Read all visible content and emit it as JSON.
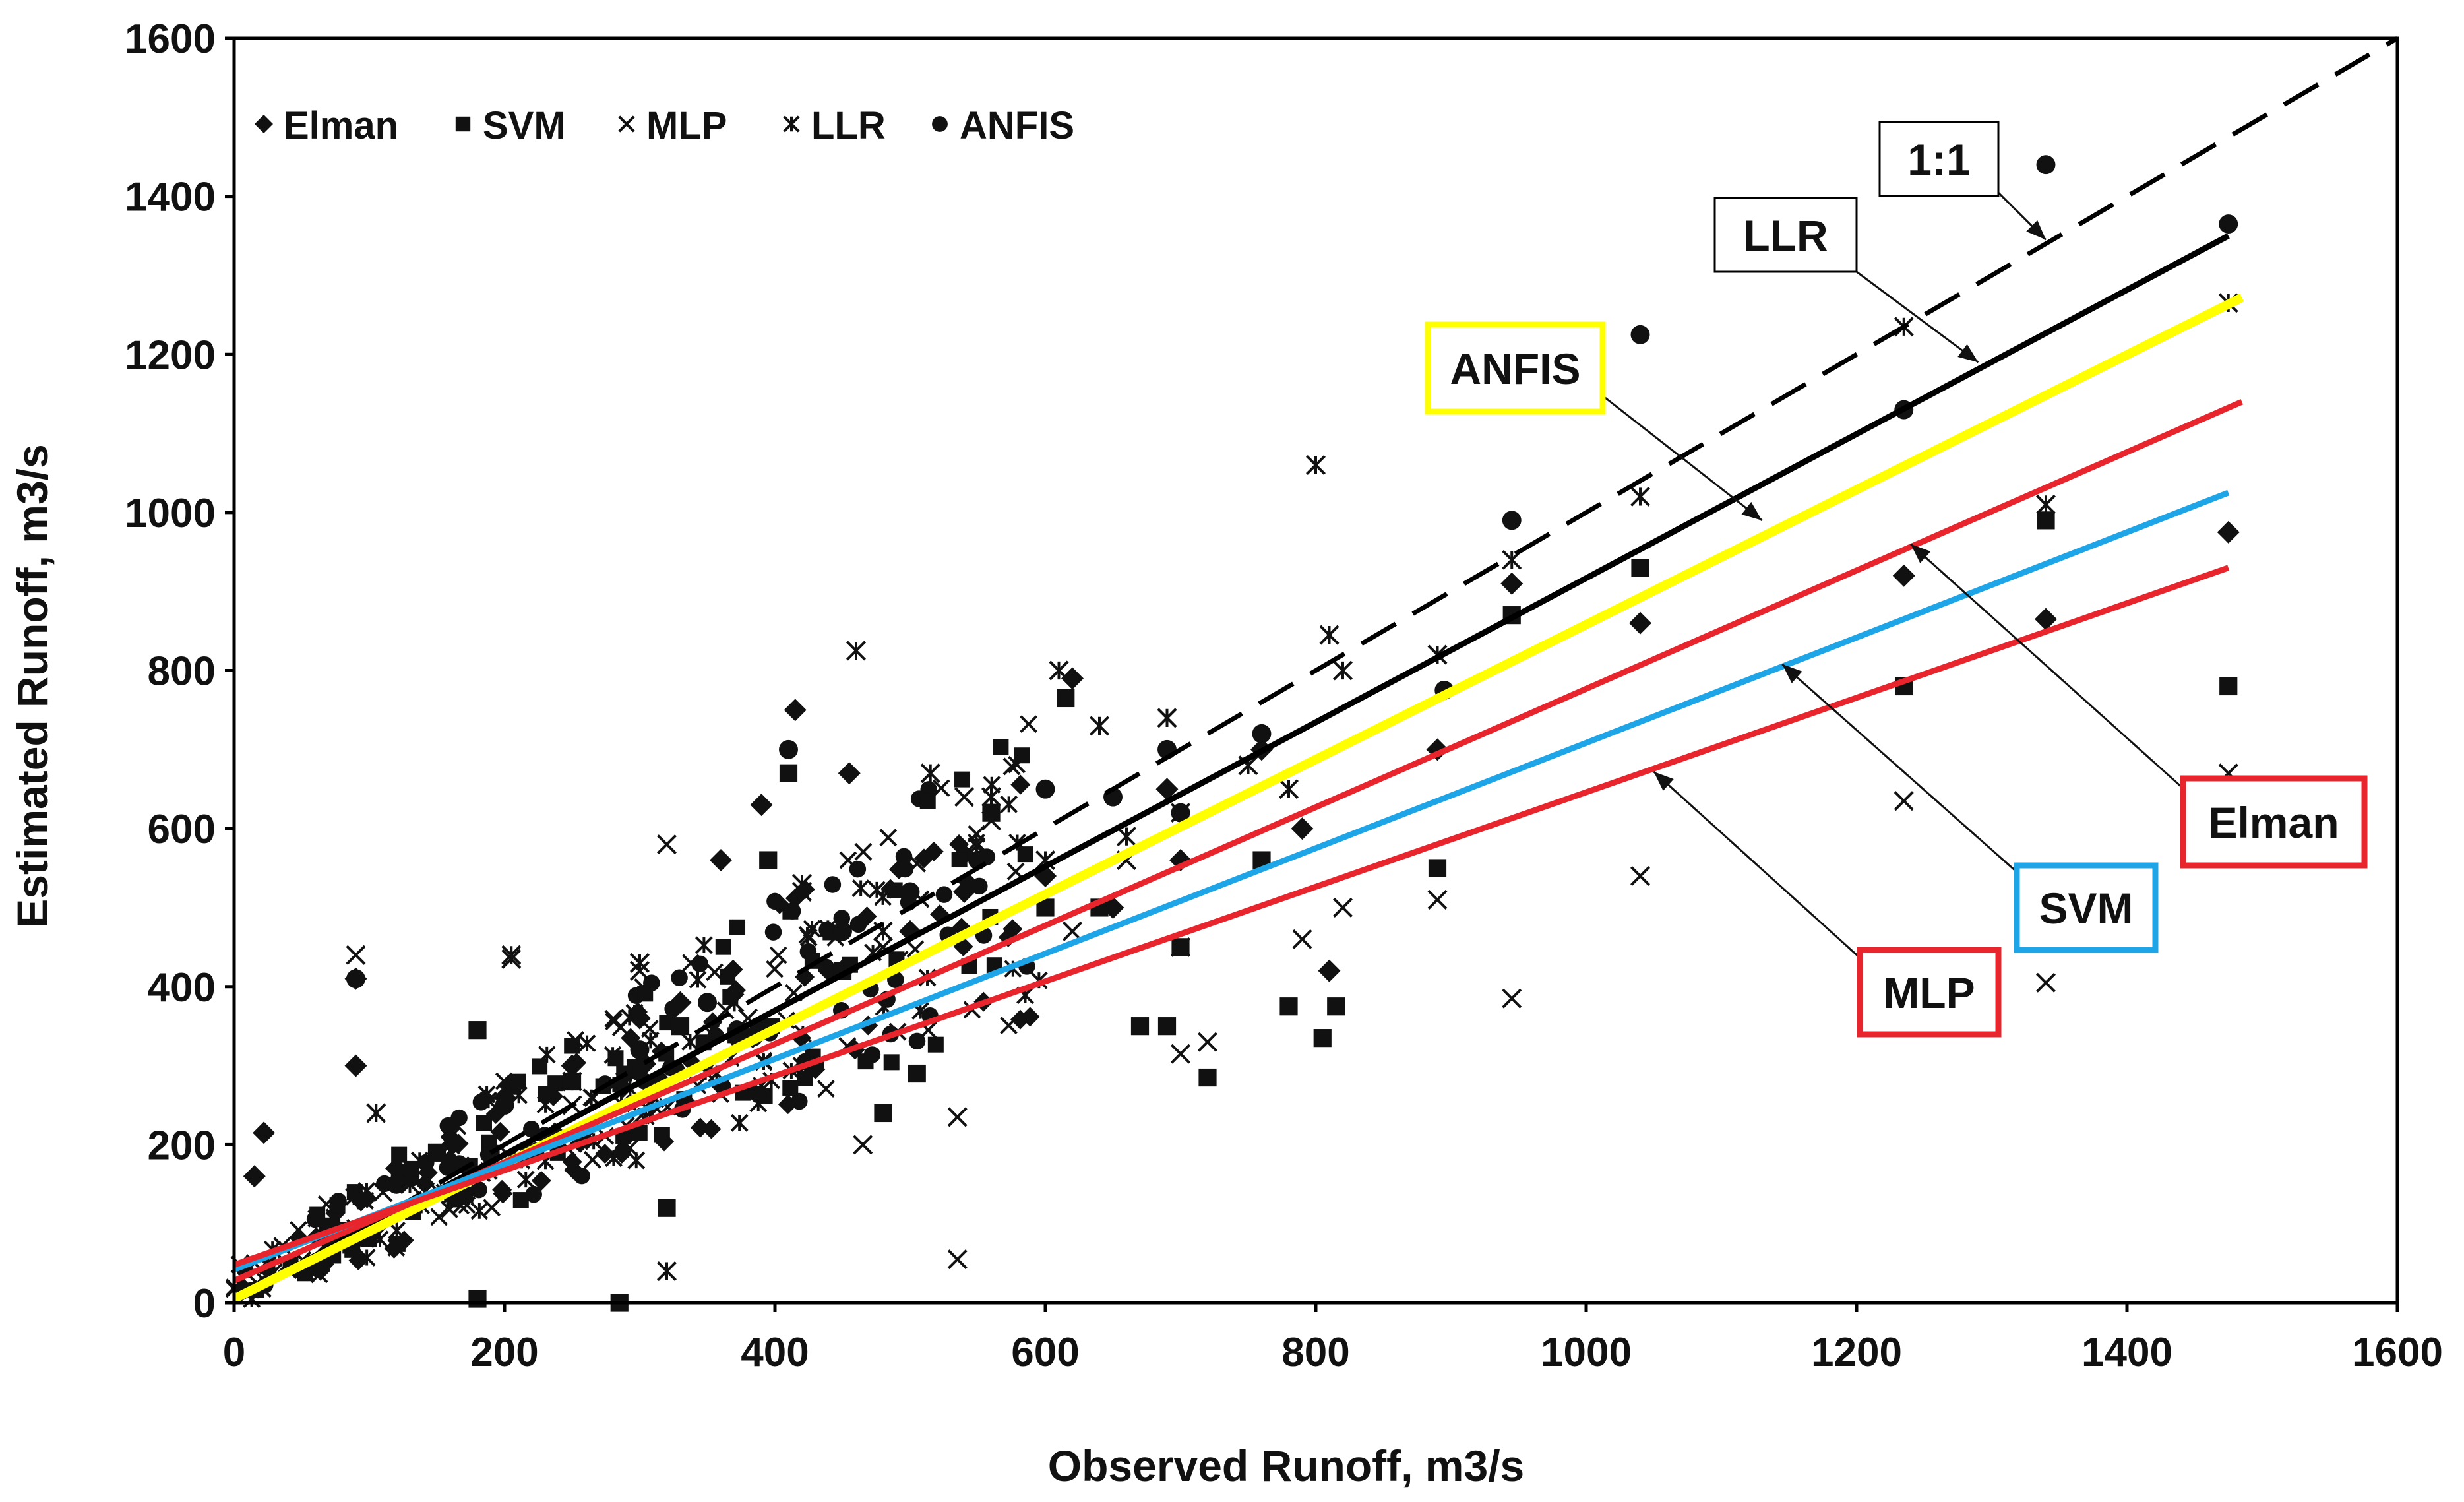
{
  "chart_data": {
    "type": "scatter",
    "title": "",
    "xlabel": "Observed Runoff, m3/s",
    "ylabel": "Estimated Runoff, m3/s",
    "xlim": [
      0,
      1600
    ],
    "ylim": [
      0,
      1600
    ],
    "x_ticks": [
      0,
      200,
      400,
      600,
      800,
      1000,
      1200,
      1400,
      1600
    ],
    "y_ticks": [
      0,
      200,
      400,
      600,
      800,
      1000,
      1200,
      1400,
      1600
    ],
    "x_tick_labels": [
      "0",
      "200",
      "400",
      "600",
      "800",
      "1000",
      "1200",
      "1400",
      "1600"
    ],
    "y_tick_labels": [
      "0",
      "200",
      "400",
      "600",
      "800",
      "1000",
      "1200",
      "1400",
      "1600"
    ],
    "grid": false,
    "legend": {
      "placement": "top-left",
      "entries": [
        {
          "name": "Elman",
          "marker": "diamond"
        },
        {
          "name": "SVM",
          "marker": "square"
        },
        {
          "name": "MLP",
          "marker": "x"
        },
        {
          "name": "LLR",
          "marker": "asterisk"
        },
        {
          "name": "ANFIS",
          "marker": "circle"
        }
      ]
    },
    "trend_lines": [
      {
        "name": "1:1",
        "style": "dashed",
        "color": "#000000",
        "x": [
          0,
          1600
        ],
        "y": [
          0,
          1600
        ]
      },
      {
        "name": "LLR",
        "style": "solid",
        "color": "#000000",
        "x": [
          0,
          1475
        ],
        "y": [
          5,
          1350
        ]
      },
      {
        "name": "ANFIS",
        "style": "solid",
        "color": "#ffff00",
        "x": [
          0,
          1485
        ],
        "y": [
          5,
          1272
        ]
      },
      {
        "name": "Elman",
        "style": "solid",
        "color": "#e8242c",
        "x": [
          0,
          1485
        ],
        "y": [
          28,
          1140
        ]
      },
      {
        "name": "SVM",
        "style": "solid",
        "color": "#1ea5e8",
        "x": [
          0,
          1475
        ],
        "y": [
          42,
          1025
        ]
      },
      {
        "name": "MLP",
        "style": "solid",
        "color": "#e8242c",
        "x": [
          0,
          1475
        ],
        "y": [
          48,
          930
        ]
      }
    ],
    "annotations": [
      {
        "label": "1:1",
        "border": "#000000",
        "arrow_to": [
          1340,
          1345
        ]
      },
      {
        "label": "LLR",
        "border": "#000000",
        "arrow_to": [
          1290,
          1190
        ]
      },
      {
        "label": "ANFIS",
        "border": "#ffff00",
        "arrow_to": [
          1130,
          990
        ]
      },
      {
        "label": "Elman",
        "border": "#e8242c",
        "arrow_to": [
          1240,
          960
        ]
      },
      {
        "label": "SVM",
        "border": "#1ea5e8",
        "arrow_to": [
          1145,
          808
        ]
      },
      {
        "label": "MLP",
        "border": "#e8242c",
        "arrow_to": [
          1050,
          672
        ]
      }
    ],
    "series": [
      {
        "name": "Elman",
        "marker": "diamond",
        "points": [
          [
            15,
            160
          ],
          [
            22,
            215
          ],
          [
            90,
            300
          ],
          [
            90,
            410
          ],
          [
            360,
            560
          ],
          [
            415,
            750
          ],
          [
            455,
            670
          ],
          [
            390,
            630
          ],
          [
            620,
            790
          ],
          [
            690,
            650
          ],
          [
            760,
            700
          ],
          [
            790,
            600
          ],
          [
            810,
            420
          ],
          [
            890,
            700
          ],
          [
            945,
            910
          ],
          [
            1040,
            860
          ],
          [
            1235,
            920
          ],
          [
            1340,
            865
          ],
          [
            1475,
            975
          ],
          [
            600,
            540
          ],
          [
            540,
            520
          ],
          [
            300,
            360
          ],
          [
            200,
            260
          ],
          [
            500,
            470
          ],
          [
            700,
            560
          ],
          [
            120,
            170
          ],
          [
            250,
            300
          ],
          [
            440,
            420
          ],
          [
            650,
            500
          ],
          [
            330,
            380
          ]
        ]
      },
      {
        "name": "SVM",
        "marker": "square",
        "points": [
          [
            180,
            345
          ],
          [
            180,
            5
          ],
          [
            285,
            0
          ],
          [
            320,
            120
          ],
          [
            395,
            560
          ],
          [
            410,
            670
          ],
          [
            480,
            240
          ],
          [
            505,
            290
          ],
          [
            560,
            620
          ],
          [
            615,
            765
          ],
          [
            640,
            500
          ],
          [
            670,
            350
          ],
          [
            690,
            350
          ],
          [
            720,
            285
          ],
          [
            760,
            560
          ],
          [
            780,
            375
          ],
          [
            805,
            335
          ],
          [
            815,
            375
          ],
          [
            890,
            550
          ],
          [
            945,
            870
          ],
          [
            1040,
            930
          ],
          [
            1235,
            780
          ],
          [
            1340,
            990
          ],
          [
            1475,
            780
          ],
          [
            600,
            500
          ],
          [
            250,
            280
          ],
          [
            450,
            420
          ],
          [
            700,
            450
          ],
          [
            150,
            190
          ],
          [
            330,
            350
          ]
        ]
      },
      {
        "name": "MLP",
        "marker": "x",
        "points": [
          [
            90,
            440
          ],
          [
            205,
            435
          ],
          [
            320,
            580
          ],
          [
            465,
            200
          ],
          [
            535,
            55
          ],
          [
            535,
            235
          ],
          [
            540,
            640
          ],
          [
            690,
            740
          ],
          [
            700,
            315
          ],
          [
            720,
            330
          ],
          [
            790,
            460
          ],
          [
            890,
            510
          ],
          [
            945,
            385
          ],
          [
            1040,
            540
          ],
          [
            1235,
            635
          ],
          [
            1340,
            405
          ],
          [
            1475,
            670
          ],
          [
            610,
            800
          ],
          [
            560,
            610
          ],
          [
            300,
            420
          ],
          [
            420,
            520
          ],
          [
            700,
            450
          ],
          [
            250,
            250
          ],
          [
            480,
            450
          ],
          [
            660,
            560
          ],
          [
            160,
            210
          ],
          [
            380,
            360
          ],
          [
            620,
            470
          ],
          [
            820,
            500
          ],
          [
            110,
            140
          ]
        ]
      },
      {
        "name": "LLR",
        "marker": "asterisk",
        "points": [
          [
            105,
            240
          ],
          [
            205,
            440
          ],
          [
            320,
            40
          ],
          [
            460,
            825
          ],
          [
            515,
            670
          ],
          [
            610,
            800
          ],
          [
            640,
            730
          ],
          [
            690,
            740
          ],
          [
            800,
            1060
          ],
          [
            810,
            845
          ],
          [
            820,
            800
          ],
          [
            890,
            820
          ],
          [
            945,
            940
          ],
          [
            1040,
            1020
          ],
          [
            1235,
            1235
          ],
          [
            1340,
            1010
          ],
          [
            1475,
            1265
          ],
          [
            560,
            640
          ],
          [
            300,
            430
          ],
          [
            420,
            530
          ],
          [
            750,
            680
          ],
          [
            250,
            280
          ],
          [
            480,
            470
          ],
          [
            660,
            590
          ],
          [
            160,
            200
          ],
          [
            370,
            380
          ],
          [
            600,
            560
          ],
          [
            780,
            650
          ],
          [
            130,
            150
          ],
          [
            700,
            620
          ]
        ]
      },
      {
        "name": "ANFIS",
        "marker": "circle",
        "points": [
          [
            90,
            410
          ],
          [
            410,
            700
          ],
          [
            690,
            700
          ],
          [
            760,
            720
          ],
          [
            895,
            775
          ],
          [
            945,
            990
          ],
          [
            1040,
            1225
          ],
          [
            1235,
            1130
          ],
          [
            1340,
            1440
          ],
          [
            1475,
            1365
          ],
          [
            600,
            650
          ],
          [
            500,
            520
          ],
          [
            300,
            320
          ],
          [
            200,
            250
          ],
          [
            700,
            620
          ],
          [
            550,
            560
          ],
          [
            350,
            380
          ],
          [
            120,
            150
          ],
          [
            450,
            470
          ],
          [
            650,
            640
          ]
        ]
      }
    ],
    "dense_cloud": {
      "x_range": [
        0,
        600
      ],
      "description_points": 400
    }
  }
}
